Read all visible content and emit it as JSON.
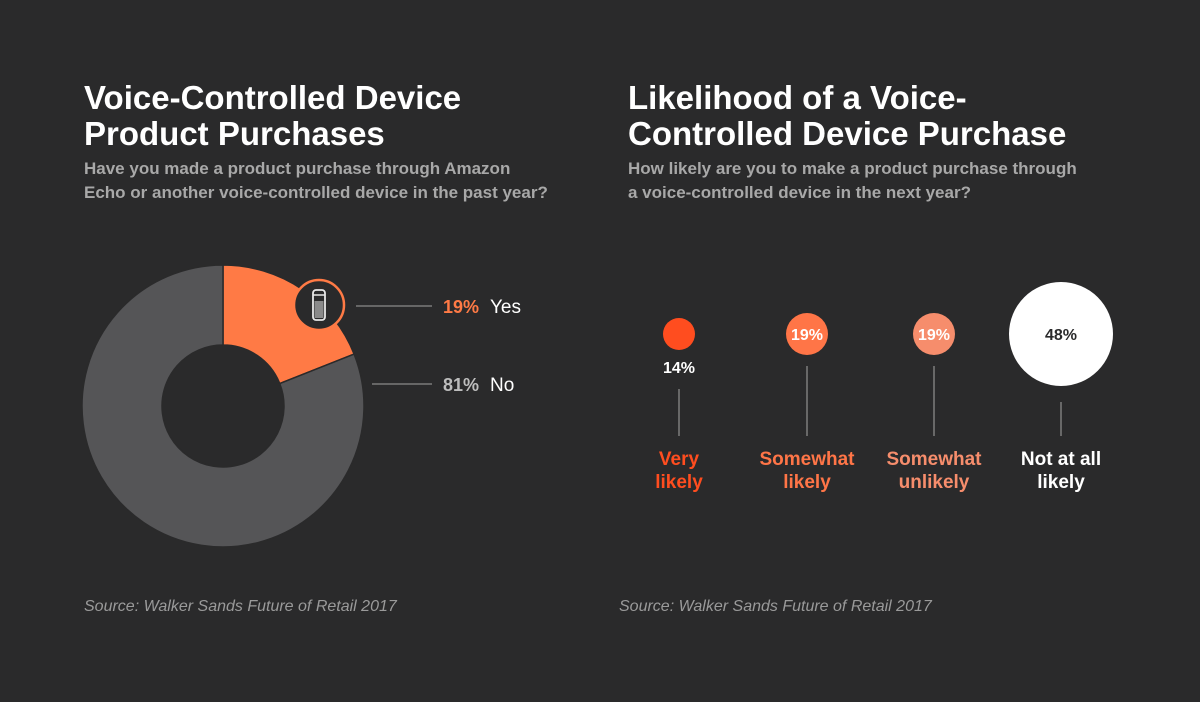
{
  "colors": {
    "background": "#2a2a2b",
    "orange": "#ff7a45",
    "orange_red": "#ff4d1f",
    "orange_mid": "#ff7547",
    "salmon": "#f68d6c",
    "gray_slice": "#555557",
    "white": "#ffffff"
  },
  "chart_data": [
    {
      "type": "pie",
      "title": "Voice-Controlled Device Product Purchases",
      "title_lines": [
        "Voice-Controlled Device",
        "Product Purchases"
      ],
      "subtitle_lines": [
        "Have you made a product purchase through Amazon",
        "Echo or another voice-controlled device in the past year?"
      ],
      "donut": true,
      "icon": "smart-speaker-icon",
      "slices": [
        {
          "label": "Yes",
          "value": 19,
          "value_text": "19%",
          "color": "#ff7a45",
          "pct_color": "#ff7a45"
        },
        {
          "label": "No",
          "value": 81,
          "value_text": "81%",
          "color": "#555557",
          "pct_color": "#bdbdbd"
        }
      ],
      "source": "Source: Walker Sands Future of Retail 2017"
    },
    {
      "type": "bubble",
      "title": "Likelihood of a Voice-Controlled Device Purchase",
      "title_lines": [
        "Likelihood of a Voice-",
        "Controlled Device Purchase"
      ],
      "subtitle_lines": [
        "How likely are you to make a product purchase through",
        "a voice-controlled device in the next year?"
      ],
      "categories": [
        {
          "label_lines": [
            "Very",
            "likely"
          ],
          "value": 14,
          "value_text": "14%",
          "color": "#ff4d1f",
          "label_color": "#ff4d1f",
          "value_color": "#ffffff",
          "value_inside": false
        },
        {
          "label_lines": [
            "Somewhat",
            "likely"
          ],
          "value": 19,
          "value_text": "19%",
          "color": "#ff7547",
          "label_color": "#ff7547",
          "value_color": "#ffffff",
          "value_inside": true
        },
        {
          "label_lines": [
            "Somewhat",
            "unlikely"
          ],
          "value": 19,
          "value_text": "19%",
          "color": "#f68d6c",
          "label_color": "#f68d6c",
          "value_color": "#ffffff",
          "value_inside": true
        },
        {
          "label_lines": [
            "Not at all",
            "likely"
          ],
          "value": 48,
          "value_text": "48%",
          "color": "#ffffff",
          "label_color": "#ffffff",
          "value_color": "#2a2a2b",
          "value_inside": true
        }
      ],
      "source": "Source: Walker Sands Future of Retail 2017"
    }
  ]
}
